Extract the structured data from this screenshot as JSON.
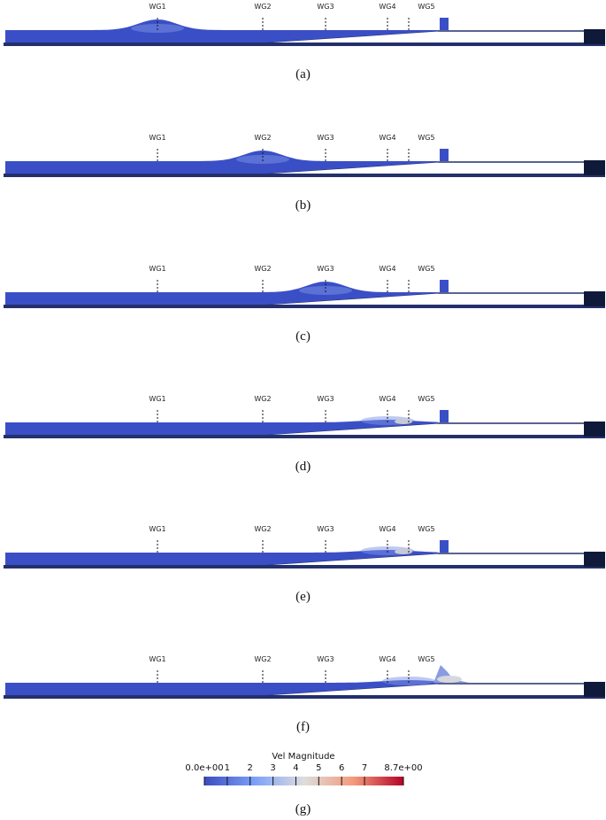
{
  "gauges": [
    "WG1",
    "WG2",
    "WG3",
    "WG4",
    "WG5"
  ],
  "panels": [
    {
      "caption": "(a)",
      "wave_at": "WG1"
    },
    {
      "caption": "(b)",
      "wave_at": "WG2"
    },
    {
      "caption": "(c)",
      "wave_at": "WG3"
    },
    {
      "caption": "(d)",
      "wave_at": "WG4"
    },
    {
      "caption": "(e)",
      "wave_at": "WG4"
    },
    {
      "caption": "(f)",
      "wave_at": "WG5"
    }
  ],
  "colorbar": {
    "title": "Vel Magnitude",
    "ticks": [
      "0.0e+00",
      "1",
      "2",
      "3",
      "4",
      "5",
      "6",
      "7",
      "8.7e+00"
    ],
    "tick_values": [
      0,
      1,
      2,
      3,
      4,
      5,
      6,
      7,
      8.7
    ],
    "range": [
      0,
      8.7
    ],
    "colors": [
      "#3b4cc0",
      "#dddddd",
      "#b40426"
    ],
    "caption": "(g)"
  }
}
